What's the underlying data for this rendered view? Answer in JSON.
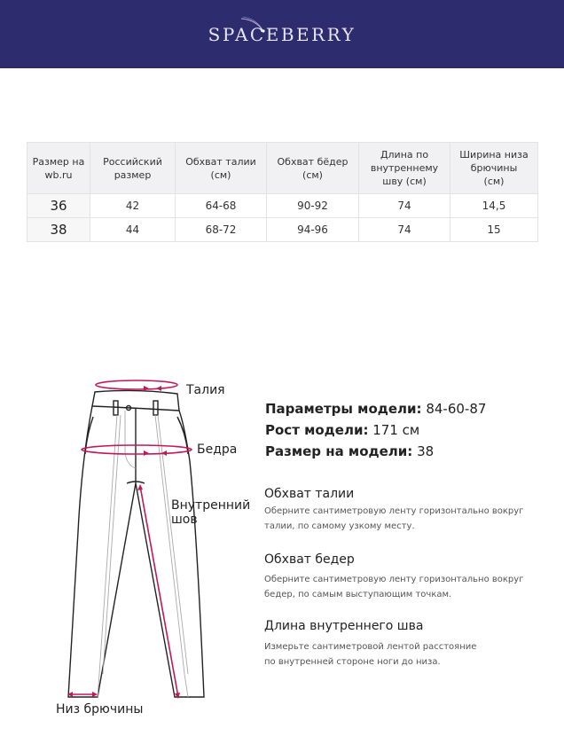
{
  "brand": {
    "name": "SPACEBERRY",
    "colors": {
      "header_bg": "#2c2c6e",
      "accent": "#c2185b"
    }
  },
  "table": {
    "headers": [
      "Размер на wb.ru",
      "Российский размер",
      "Обхват талии (см)",
      "Обхват бёдер (см)",
      "Длина по внутреннему шву (см)",
      "Ширина низа брючины (см)"
    ],
    "rows": [
      [
        "36",
        "42",
        "64-68",
        "90-92",
        "74",
        "14,5"
      ],
      [
        "38",
        "44",
        "68-72",
        "94-96",
        "74",
        "15"
      ]
    ]
  },
  "model": {
    "params_label": "Параметры модели:",
    "params_value": "84-60-87",
    "height_label": "Рост модели:",
    "height_value": "171 см",
    "size_label": "Размер на модели:",
    "size_value": "38"
  },
  "diagram": {
    "waist": "Талия",
    "hips": "Бедра",
    "inseam_1": "Внутренний",
    "inseam_2": "шов",
    "hem": "Низ брючины"
  },
  "guide": [
    {
      "title": "Обхват талии",
      "line1": "Оберните сантиметровую ленту горизонтально вокруг",
      "line2": "талии, по самому узкому месту."
    },
    {
      "title": "Обхват бедер",
      "line1": "Оберните сантиметровую ленту горизонтально вокруг",
      "line2": "бедер, по самым выступающим точкам."
    },
    {
      "title": "Длина внутреннего шва",
      "line1": "Измерьте сантиметровой лентой расстояние",
      "line2": "по внутренней стороне ноги до низа."
    }
  ]
}
